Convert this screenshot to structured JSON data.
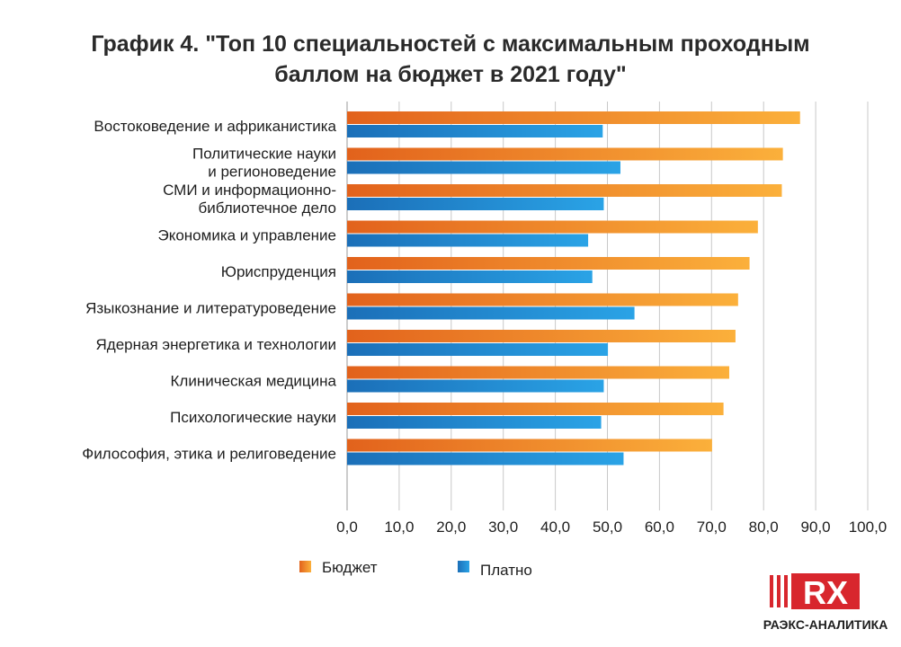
{
  "chart_data": {
    "type": "bar",
    "orientation": "horizontal",
    "title_lines": [
      "График 4. \"Топ 10 специальностей с максимальным проходным",
      "баллом на бюджет в 2021 году\""
    ],
    "categories": [
      [
        "Востоковедение и африканистика"
      ],
      [
        "Политические науки",
        "и регионоведение"
      ],
      [
        "СМИ и информационно-",
        "библиотечное дело"
      ],
      [
        "Экономика и управление"
      ],
      [
        "Юриспруденция"
      ],
      [
        "Языкознание и литературоведение"
      ],
      [
        "Ядерная энергетика и технологии"
      ],
      [
        "Клиническая медицина"
      ],
      [
        "Психологические науки"
      ],
      [
        "Философия, этика и религоведение"
      ]
    ],
    "series": [
      {
        "name": "Бюджет",
        "color": "#f08a24",
        "values": [
          87.0,
          83.7,
          83.5,
          78.9,
          77.3,
          75.1,
          74.6,
          73.4,
          72.3,
          70.1
        ]
      },
      {
        "name": "Платно",
        "color": "#1f8fd4",
        "values": [
          49.1,
          52.5,
          49.3,
          46.3,
          47.1,
          55.2,
          50.1,
          49.3,
          48.8,
          53.1
        ]
      }
    ],
    "xlim": [
      0,
      100
    ],
    "xticks": [
      "0,0",
      "10,0",
      "20,0",
      "30,0",
      "40,0",
      "50,0",
      "60,0",
      "70,0",
      "80,0",
      "90,0",
      "100,0"
    ],
    "grid": "vertical",
    "legend": "bottom"
  },
  "logo": {
    "mark": "RX",
    "text": "РАЭКС-АНАЛИТИКА"
  }
}
